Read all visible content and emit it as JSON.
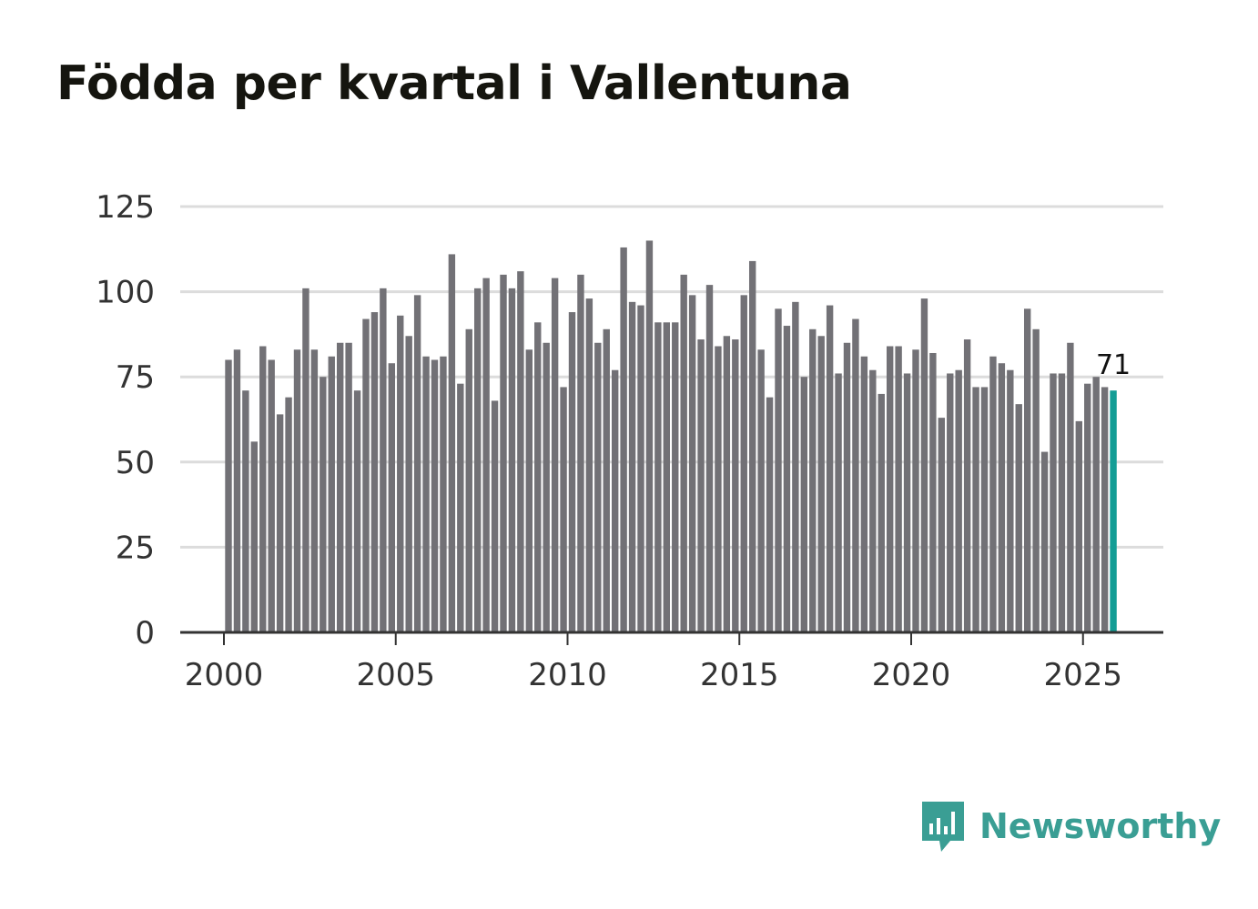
{
  "title": "Födda per kvartal i Vallentuna",
  "brand": {
    "name": "Newsworthy",
    "icon": "newsworthy-logo-icon",
    "color": "#3a9e94"
  },
  "colors": {
    "bar": "#727176",
    "highlight": "#139d95",
    "grid": "#dcdcdc",
    "axis": "#333333"
  },
  "chart_data": {
    "type": "bar",
    "title": "Födda per kvartal i Vallentuna",
    "xlabel": "",
    "ylabel": "",
    "ylim": [
      0,
      125
    ],
    "yticks": [
      "0",
      "25",
      "50",
      "75",
      "100",
      "125"
    ],
    "xticks": [
      "2000",
      "2005",
      "2010",
      "2015",
      "2020",
      "2025"
    ],
    "start_year": 2000,
    "periods_per_year": 4,
    "values": [
      80,
      83,
      71,
      56,
      84,
      80,
      64,
      69,
      83,
      101,
      83,
      75,
      81,
      85,
      85,
      71,
      92,
      94,
      101,
      79,
      93,
      87,
      99,
      81,
      80,
      81,
      111,
      73,
      89,
      101,
      104,
      68,
      105,
      101,
      106,
      83,
      91,
      85,
      104,
      72,
      94,
      105,
      98,
      85,
      89,
      77,
      113,
      97,
      96,
      115,
      91,
      91,
      91,
      105,
      99,
      86,
      102,
      84,
      87,
      86,
      99,
      109,
      83,
      69,
      95,
      90,
      97,
      75,
      89,
      87,
      96,
      76,
      85,
      92,
      81,
      77,
      70,
      84,
      84,
      76,
      83,
      98,
      82,
      63,
      76,
      77,
      86,
      72,
      72,
      81,
      79,
      77,
      67,
      95,
      89,
      53,
      76,
      76,
      85,
      62,
      73,
      75,
      72,
      71
    ],
    "highlight_last": true,
    "last_value_label": "71",
    "grid": true
  }
}
